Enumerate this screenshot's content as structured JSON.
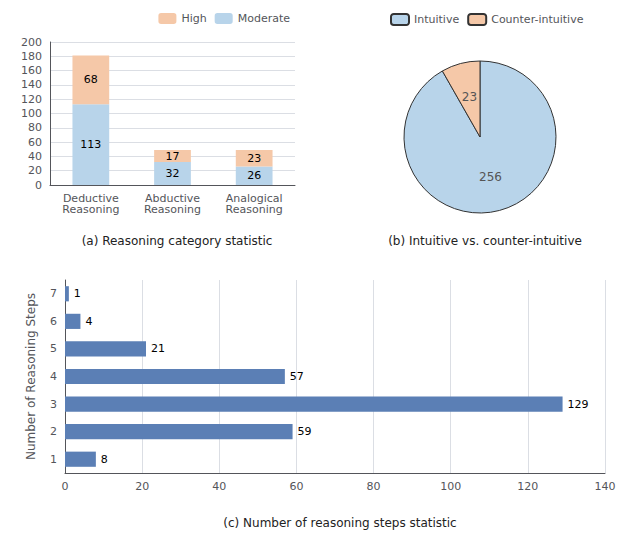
{
  "chart_data": [
    {
      "type": "bar",
      "title": "(a) Reasoning category statistic",
      "categories": [
        "Deductive\nReasoning",
        "Abductive\nReasoning",
        "Analogical\nReasoning"
      ],
      "series": [
        {
          "name": "Moderate",
          "color": "#b8d4ea",
          "values": [
            113,
            32,
            26
          ]
        },
        {
          "name": "High",
          "color": "#f5c8a8",
          "values": [
            68,
            17,
            23
          ]
        }
      ],
      "stacked": true,
      "ylim": [
        0,
        200
      ],
      "yticks": [
        0,
        20,
        40,
        60,
        80,
        100,
        120,
        140,
        160,
        180,
        200
      ],
      "grid": true,
      "legend": "upper right",
      "data_labels": true
    },
    {
      "type": "pie",
      "title": "(b) Intuitive vs. counter-intuitive",
      "categories": [
        "Intuitive",
        "Counter-intuitive"
      ],
      "values": [
        256,
        23
      ],
      "colors": [
        "#b8d4ea",
        "#f5c8a8"
      ],
      "legend": "top",
      "data_labels": true
    },
    {
      "type": "bar",
      "title": "(c) Number of reasoning steps statistic",
      "orientation": "horizontal",
      "categories": [
        "1",
        "2",
        "3",
        "4",
        "5",
        "6",
        "7"
      ],
      "values": [
        8,
        59,
        129,
        57,
        21,
        4,
        1
      ],
      "color": "#5b7fb5",
      "xlim": [
        0,
        140
      ],
      "xticks": [
        0,
        20,
        40,
        60,
        80,
        100,
        120,
        140
      ],
      "ylabel": "Number of Reasoning Steps",
      "grid": true,
      "data_labels": true
    }
  ]
}
